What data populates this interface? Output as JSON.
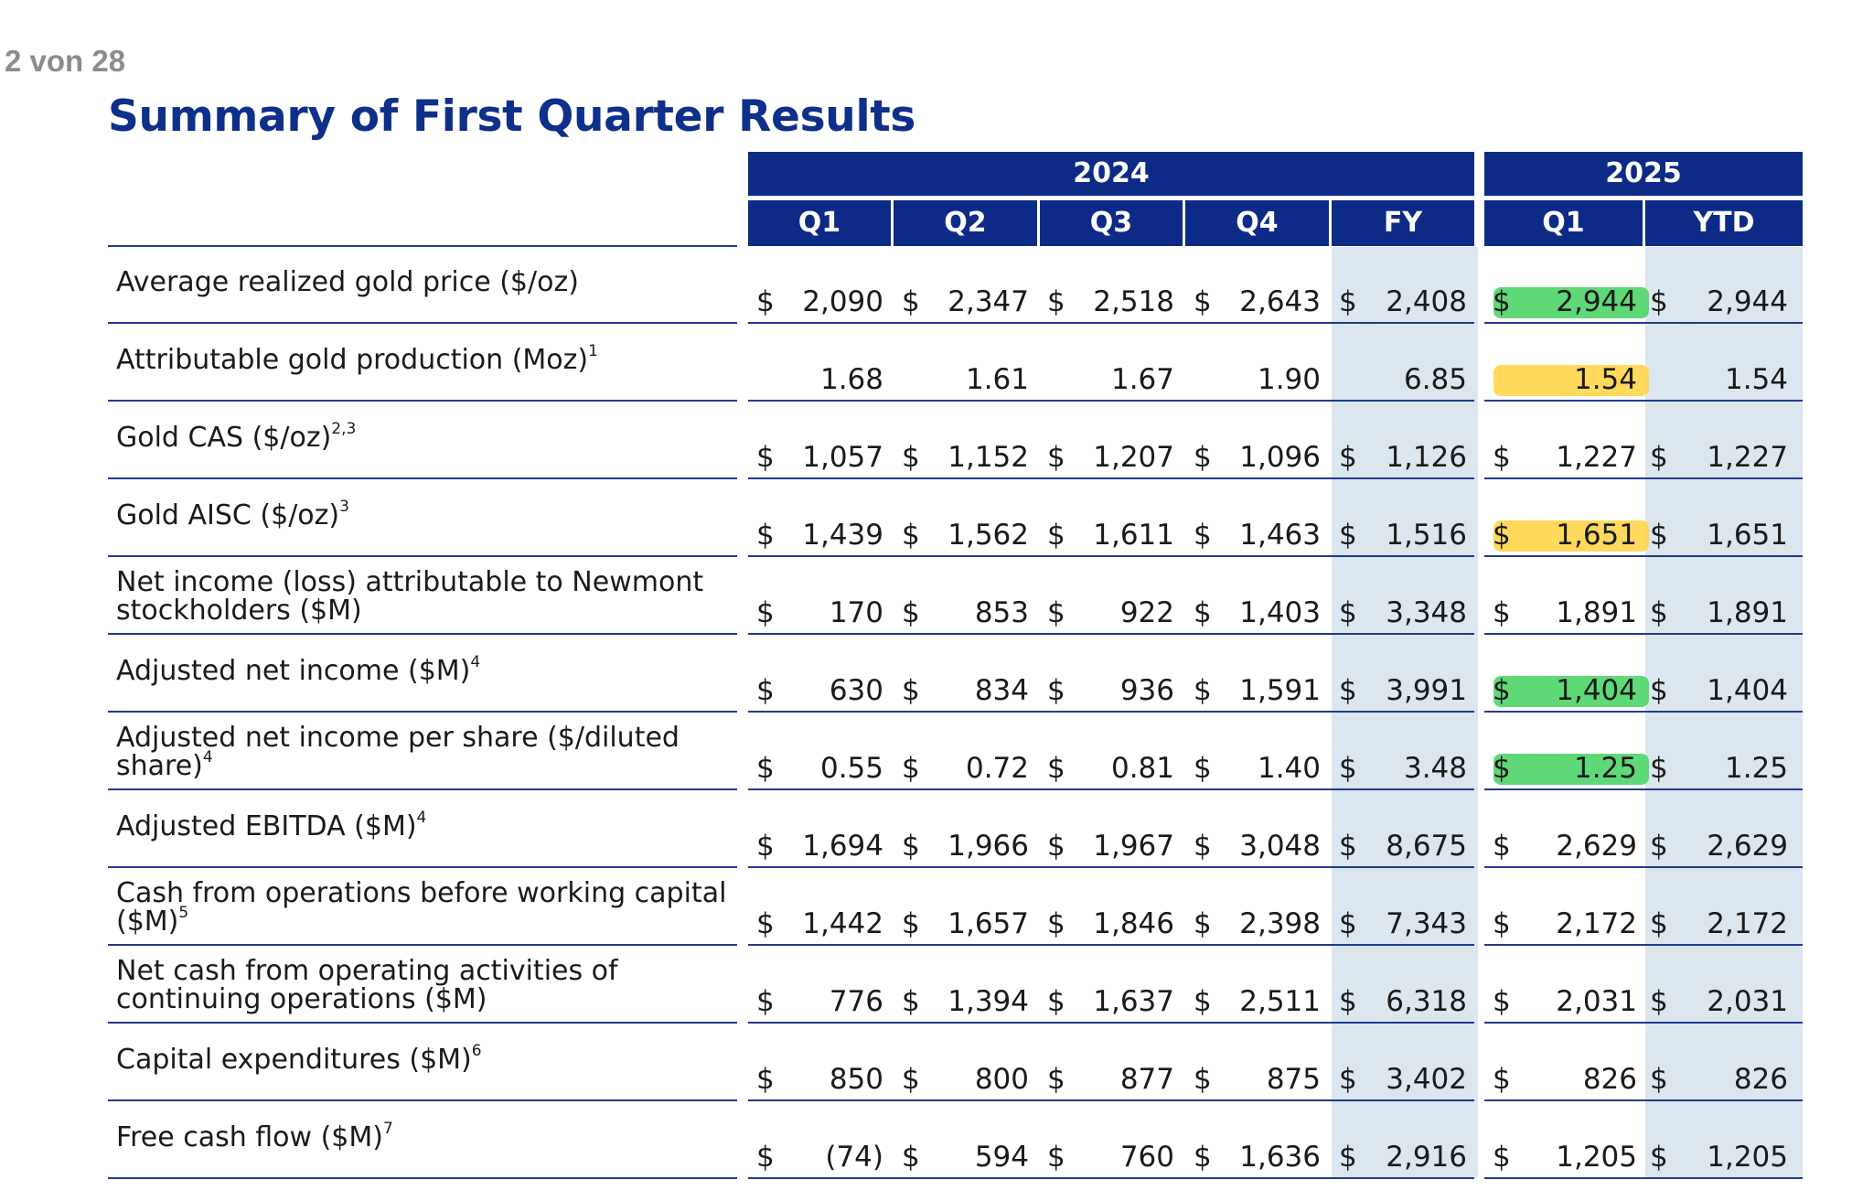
{
  "page_indicator": "2 von 28",
  "title": "Summary of First Quarter Results",
  "colors": {
    "header_blue": "#0d2b86",
    "title_blue": "#0e2f8a",
    "shade": "#dbe6ee",
    "highlight_green": "#5fd878",
    "highlight_yellow": "#ffd54a"
  },
  "years": [
    "2024",
    "2025"
  ],
  "columns": [
    "Q1",
    "Q2",
    "Q3",
    "Q4",
    "FY",
    "Q1",
    "YTD"
  ],
  "rows": [
    {
      "label": "Average realized gold price ($/oz)",
      "sup": "",
      "values": [
        "2,090",
        "2,347",
        "2,518",
        "2,643",
        "2,408",
        "2,944",
        "2,944"
      ],
      "dollar": true,
      "highlight": "green"
    },
    {
      "label": "Attributable gold production (Moz)",
      "sup": "1",
      "values": [
        "1.68",
        "1.61",
        "1.67",
        "1.90",
        "6.85",
        "1.54",
        "1.54"
      ],
      "dollar": false,
      "highlight": "yellow"
    },
    {
      "label": "Gold CAS ($/oz)",
      "sup": "2,3",
      "values": [
        "1,057",
        "1,152",
        "1,207",
        "1,096",
        "1,126",
        "1,227",
        "1,227"
      ],
      "dollar": true,
      "highlight": ""
    },
    {
      "label": "Gold AISC ($/oz)",
      "sup": "3",
      "values": [
        "1,439",
        "1,562",
        "1,611",
        "1,463",
        "1,516",
        "1,651",
        "1,651"
      ],
      "dollar": true,
      "highlight": "yellow"
    },
    {
      "label": "Net income (loss) attributable to Newmont stockholders ($M)",
      "sup": "",
      "values": [
        "170",
        "853",
        "922",
        "1,403",
        "3,348",
        "1,891",
        "1,891"
      ],
      "dollar": true,
      "highlight": ""
    },
    {
      "label": "Adjusted net income ($M)",
      "sup": "4",
      "values": [
        "630",
        "834",
        "936",
        "1,591",
        "3,991",
        "1,404",
        "1,404"
      ],
      "dollar": true,
      "highlight": "green"
    },
    {
      "label": "Adjusted net income per share ($/diluted share)",
      "sup": "4",
      "values": [
        "0.55",
        "0.72",
        "0.81",
        "1.40",
        "3.48",
        "1.25",
        "1.25"
      ],
      "dollar": true,
      "highlight": "green"
    },
    {
      "label": "Adjusted EBITDA ($M)",
      "sup": "4",
      "values": [
        "1,694",
        "1,966",
        "1,967",
        "3,048",
        "8,675",
        "2,629",
        "2,629"
      ],
      "dollar": true,
      "highlight": ""
    },
    {
      "label": "Cash from operations before working capital ($M)",
      "sup": "5",
      "values": [
        "1,442",
        "1,657",
        "1,846",
        "2,398",
        "7,343",
        "2,172",
        "2,172"
      ],
      "dollar": true,
      "highlight": ""
    },
    {
      "label": "Net cash from operating activities of continuing operations ($M)",
      "sup": "",
      "values": [
        "776",
        "1,394",
        "1,637",
        "2,511",
        "6,318",
        "2,031",
        "2,031"
      ],
      "dollar": true,
      "highlight": ""
    },
    {
      "label": "Capital expenditures ($M)",
      "sup": "6",
      "values": [
        "850",
        "800",
        "877",
        "875",
        "3,402",
        "826",
        "826"
      ],
      "dollar": true,
      "highlight": ""
    },
    {
      "label": "Free cash flow ($M)",
      "sup": "7",
      "values": [
        "(74)",
        "594",
        "760",
        "1,636",
        "2,916",
        "1,205",
        "1,205"
      ],
      "dollar": true,
      "highlight": ""
    }
  ],
  "dollar_sign": "$"
}
